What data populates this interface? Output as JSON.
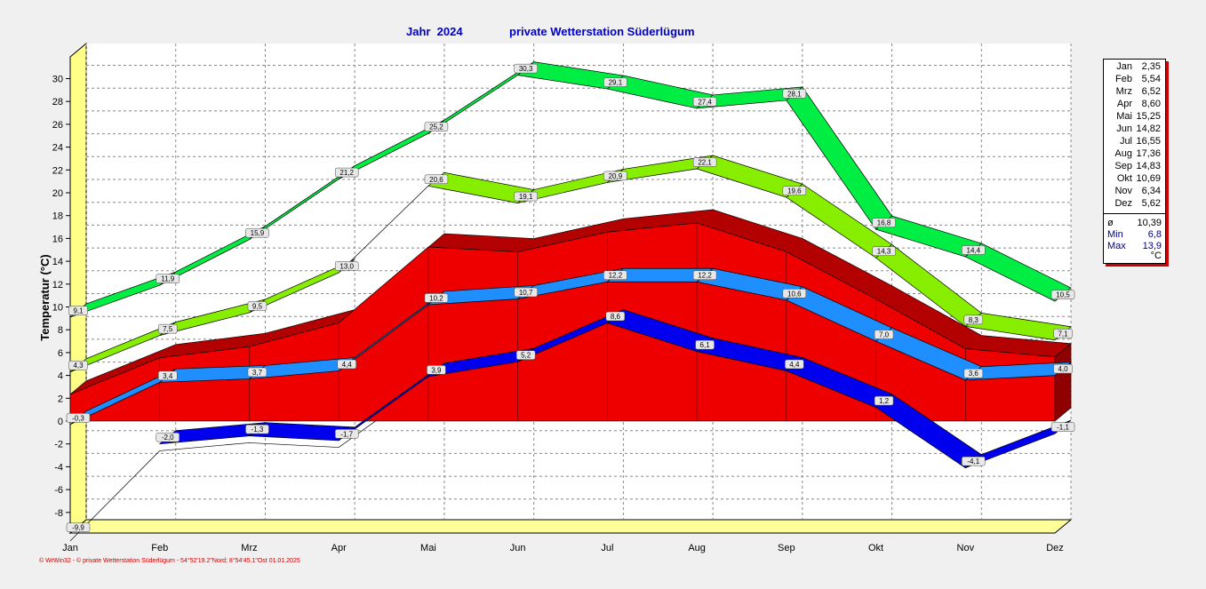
{
  "header": {
    "year_label": "Jahr  2024",
    "station_label": "private Wetterstation Süderlügum"
  },
  "footer": "© WrWin32  -  © private Wetterstation Süderlügum  -  54°52'19.2\"Nord; 8°54'45.1\"Ost   01.01.2025",
  "colors": {
    "max_abs": "#00ee44",
    "max_mean": "#88ee00",
    "mean_band": "#ee0000",
    "mean": "#1f8fff",
    "min_mean": "#0000ee",
    "side_wall": "#ffff88"
  },
  "legend": {
    "months": [
      {
        "m": "Jan",
        "v": "2,35"
      },
      {
        "m": "Feb",
        "v": "5,54"
      },
      {
        "m": "Mrz",
        "v": "6,52"
      },
      {
        "m": "Apr",
        "v": "8,60"
      },
      {
        "m": "Mai",
        "v": "15,25"
      },
      {
        "m": "Jun",
        "v": "14,82"
      },
      {
        "m": "Jul",
        "v": "16,55"
      },
      {
        "m": "Aug",
        "v": "17,36"
      },
      {
        "m": "Sep",
        "v": "14,83"
      },
      {
        "m": "Okt",
        "v": "10,69"
      },
      {
        "m": "Nov",
        "v": "6,34"
      },
      {
        "m": "Dez",
        "v": "5,62"
      }
    ],
    "avg_label": "ø",
    "avg_value": "10,39",
    "min_label": "Min",
    "min_value": "6,8",
    "max_label": "Max",
    "max_value": "13,9",
    "unit": "°C"
  },
  "chart_data": {
    "type": "area",
    "title": "private Wetterstation Süderlügum",
    "ylabel": "Temperatur  (°C)",
    "categories": [
      "Jan",
      "Feb",
      "Mrz",
      "Apr",
      "Mai",
      "Jun",
      "Jul",
      "Aug",
      "Sep",
      "Okt",
      "Nov",
      "Dez"
    ],
    "ylim": [
      -9,
      32
    ],
    "yticks": [
      -8,
      -6,
      -4,
      -2,
      0,
      2,
      4,
      6,
      8,
      10,
      12,
      14,
      16,
      18,
      20,
      22,
      24,
      26,
      28,
      30
    ],
    "grid": true,
    "series": [
      {
        "key": "max_abs",
        "values": [
          9.1,
          11.9,
          15.9,
          21.2,
          25.2,
          30.3,
          29.1,
          27.4,
          28.1,
          16.8,
          14.4,
          10.5
        ],
        "labels": [
          "9,1",
          "11,9",
          "15,9",
          "21,2",
          "25,2",
          "30,3",
          "29,1",
          "27,4",
          "28,1",
          "16,8",
          "14,4",
          "10,5"
        ]
      },
      {
        "key": "max_mean",
        "values": [
          4.3,
          7.5,
          9.5,
          13.0,
          20.6,
          19.1,
          20.9,
          22.1,
          19.6,
          14.3,
          8.3,
          7.1
        ],
        "labels": [
          "4,3",
          "7,5",
          "9,5",
          "13,0",
          "20,6",
          "19,1",
          "20,9",
          "22,1",
          "19,6",
          "14,3",
          "8,3",
          "7,1"
        ]
      },
      {
        "key": "mean_band",
        "values": [
          2.35,
          5.54,
          6.52,
          8.6,
          15.25,
          14.82,
          16.55,
          17.36,
          14.83,
          10.69,
          6.34,
          5.62
        ]
      },
      {
        "key": "mean",
        "values": [
          -0.3,
          3.4,
          3.7,
          4.4,
          10.2,
          10.7,
          12.2,
          12.2,
          10.6,
          7.0,
          3.6,
          4.0
        ],
        "labels": [
          "-0,3",
          "3,4",
          "3,7",
          "4,4",
          "10,2",
          "10,7",
          "12,2",
          "12,2",
          "10,6",
          "7,0",
          "3,6",
          "4,0"
        ]
      },
      {
        "key": "min_mean",
        "values": [
          -9.9,
          -2.0,
          -1.3,
          -1.7,
          3.9,
          5.2,
          8.6,
          6.1,
          4.4,
          1.2,
          -4.1,
          -1.1
        ],
        "labels": [
          "-9,9",
          "-2,0",
          "-1,3",
          "-1,7",
          "3,9",
          "5,2",
          "8,6",
          "6,1",
          "4,4",
          "1,2",
          "-4,1",
          "-1,1"
        ]
      }
    ]
  }
}
